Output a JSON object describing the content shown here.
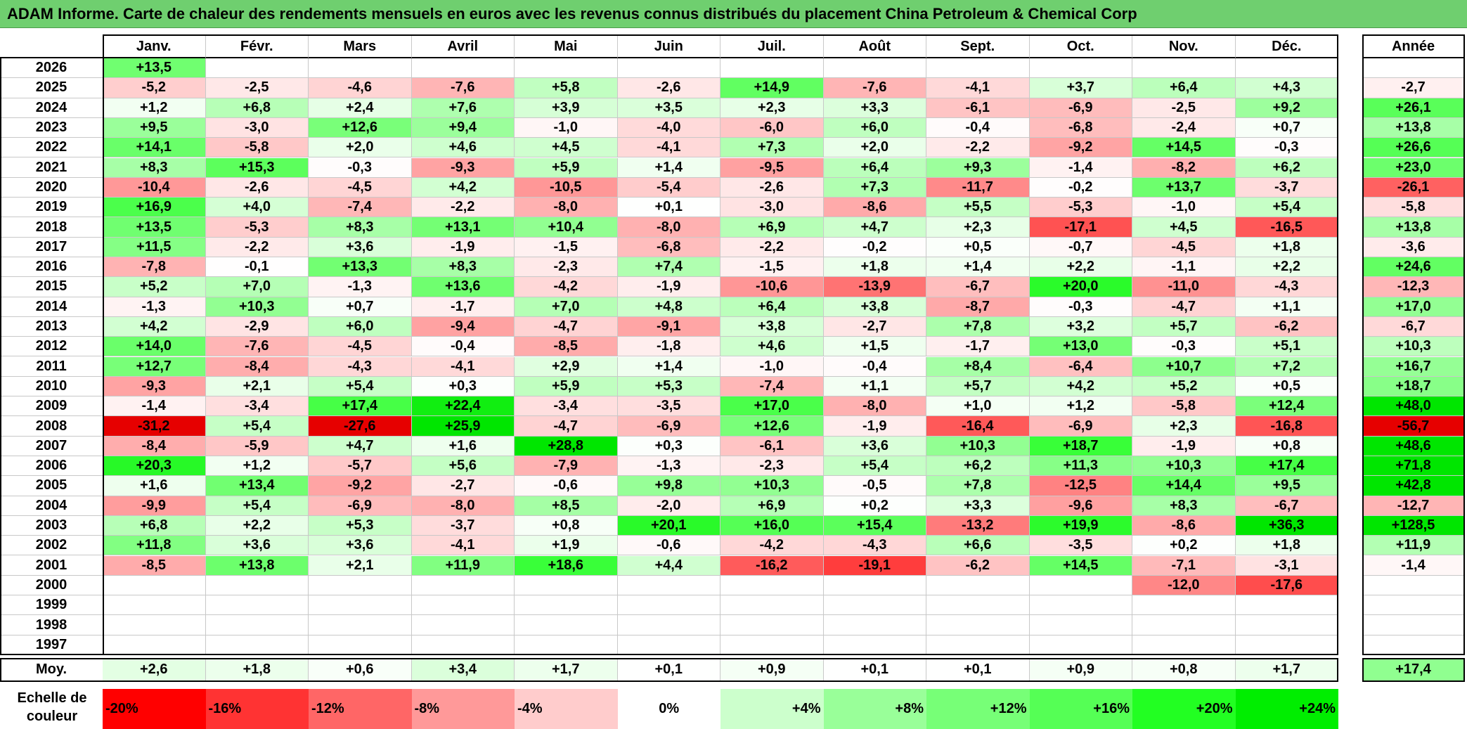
{
  "title": "ADAM Informe. Carte de chaleur des rendements mensuels en euros avec les revenus connus distribués du placement China Petroleum & Chemical Corp",
  "chart_data": {
    "type": "heatmap",
    "title": "ADAM Informe. Carte de chaleur des rendements mensuels en euros avec les revenus connus distribués du placement China Petroleum & Chemical Corp",
    "months": [
      "Janv.",
      "Févr.",
      "Mars",
      "Avril",
      "Mai",
      "Juin",
      "Juil.",
      "Août",
      "Sept.",
      "Oct.",
      "Nov.",
      "Déc."
    ],
    "year_header": "Année",
    "rows": [
      {
        "year": "2026",
        "values": [
          "+13,5",
          "",
          "",
          "",
          "",
          "",
          "",
          "",
          "",
          "",
          "",
          ""
        ],
        "annual": ""
      },
      {
        "year": "2025",
        "values": [
          "-5,2",
          "-2,5",
          "-4,6",
          "-7,6",
          "+5,8",
          "-2,6",
          "+14,9",
          "-7,6",
          "-4,1",
          "+3,7",
          "+6,4",
          "+4,3"
        ],
        "annual": "-2,7"
      },
      {
        "year": "2024",
        "values": [
          "+1,2",
          "+6,8",
          "+2,4",
          "+7,6",
          "+3,9",
          "+3,5",
          "+2,3",
          "+3,3",
          "-6,1",
          "-6,9",
          "-2,5",
          "+9,2"
        ],
        "annual": "+26,1"
      },
      {
        "year": "2023",
        "values": [
          "+9,5",
          "-3,0",
          "+12,6",
          "+9,4",
          "-1,0",
          "-4,0",
          "-6,0",
          "+6,0",
          "-0,4",
          "-6,8",
          "-2,4",
          "+0,7"
        ],
        "annual": "+13,8"
      },
      {
        "year": "2022",
        "values": [
          "+14,1",
          "-5,8",
          "+2,0",
          "+4,6",
          "+4,5",
          "-4,1",
          "+7,3",
          "+2,0",
          "-2,2",
          "-9,2",
          "+14,5",
          "-0,3"
        ],
        "annual": "+26,6"
      },
      {
        "year": "2021",
        "values": [
          "+8,3",
          "+15,3",
          "-0,3",
          "-9,3",
          "+5,9",
          "+1,4",
          "-9,5",
          "+6,4",
          "+9,3",
          "-1,4",
          "-8,2",
          "+6,2"
        ],
        "annual": "+23,0"
      },
      {
        "year": "2020",
        "values": [
          "-10,4",
          "-2,6",
          "-4,5",
          "+4,2",
          "-10,5",
          "-5,4",
          "-2,6",
          "+7,3",
          "-11,7",
          "-0,2",
          "+13,7",
          "-3,7"
        ],
        "annual": "-26,1"
      },
      {
        "year": "2019",
        "values": [
          "+16,9",
          "+4,0",
          "-7,4",
          "-2,2",
          "-8,0",
          "+0,1",
          "-3,0",
          "-8,6",
          "+5,5",
          "-5,3",
          "-1,0",
          "+5,4"
        ],
        "annual": "-5,8"
      },
      {
        "year": "2018",
        "values": [
          "+13,5",
          "-5,3",
          "+8,3",
          "+13,1",
          "+10,4",
          "-8,0",
          "+6,9",
          "+4,7",
          "+2,3",
          "-17,1",
          "+4,5",
          "-16,5"
        ],
        "annual": "+13,8"
      },
      {
        "year": "2017",
        "values": [
          "+11,5",
          "-2,2",
          "+3,6",
          "-1,9",
          "-1,5",
          "-6,8",
          "-2,2",
          "-0,2",
          "+0,5",
          "-0,7",
          "-4,5",
          "+1,8"
        ],
        "annual": "-3,6"
      },
      {
        "year": "2016",
        "values": [
          "-7,8",
          "-0,1",
          "+13,3",
          "+8,3",
          "-2,3",
          "+7,4",
          "-1,5",
          "+1,8",
          "+1,4",
          "+2,2",
          "-1,1",
          "+2,2"
        ],
        "annual": "+24,6"
      },
      {
        "year": "2015",
        "values": [
          "+5,2",
          "+7,0",
          "-1,3",
          "+13,6",
          "-4,2",
          "-1,9",
          "-10,6",
          "-13,9",
          "-6,7",
          "+20,0",
          "-11,0",
          "-4,3"
        ],
        "annual": "-12,3"
      },
      {
        "year": "2014",
        "values": [
          "-1,3",
          "+10,3",
          "+0,7",
          "-1,7",
          "+7,0",
          "+4,8",
          "+6,4",
          "+3,8",
          "-8,7",
          "-0,3",
          "-4,7",
          "+1,1"
        ],
        "annual": "+17,0"
      },
      {
        "year": "2013",
        "values": [
          "+4,2",
          "-2,9",
          "+6,0",
          "-9,4",
          "-4,7",
          "-9,1",
          "+3,8",
          "-2,7",
          "+7,8",
          "+3,2",
          "+5,7",
          "-6,2"
        ],
        "annual": "-6,7"
      },
      {
        "year": "2012",
        "values": [
          "+14,0",
          "-7,6",
          "-4,5",
          "-0,4",
          "-8,5",
          "-1,8",
          "+4,6",
          "+1,5",
          "-1,7",
          "+13,0",
          "-0,3",
          "+5,1"
        ],
        "annual": "+10,3"
      },
      {
        "year": "2011",
        "values": [
          "+12,7",
          "-8,4",
          "-4,3",
          "-4,1",
          "+2,9",
          "+1,4",
          "-1,0",
          "-0,4",
          "+8,4",
          "-6,4",
          "+10,7",
          "+7,2"
        ],
        "annual": "+16,7"
      },
      {
        "year": "2010",
        "values": [
          "-9,3",
          "+2,1",
          "+5,4",
          "+0,3",
          "+5,9",
          "+5,3",
          "-7,4",
          "+1,1",
          "+5,7",
          "+4,2",
          "+5,2",
          "+0,5"
        ],
        "annual": "+18,7"
      },
      {
        "year": "2009",
        "values": [
          "-1,4",
          "-3,4",
          "+17,4",
          "+22,4",
          "-3,4",
          "-3,5",
          "+17,0",
          "-8,0",
          "+1,0",
          "+1,2",
          "-5,8",
          "+12,4"
        ],
        "annual": "+48,0"
      },
      {
        "year": "2008",
        "values": [
          "-31,2",
          "+5,4",
          "-27,6",
          "+25,9",
          "-4,7",
          "-6,9",
          "+12,6",
          "-1,9",
          "-16,4",
          "-6,9",
          "+2,3",
          "-16,8"
        ],
        "annual": "-56,7"
      },
      {
        "year": "2007",
        "values": [
          "-8,4",
          "-5,9",
          "+4,7",
          "+1,6",
          "+28,8",
          "+0,3",
          "-6,1",
          "+3,6",
          "+10,3",
          "+18,7",
          "-1,9",
          "+0,8"
        ],
        "annual": "+48,6"
      },
      {
        "year": "2006",
        "values": [
          "+20,3",
          "+1,2",
          "-5,7",
          "+5,6",
          "-7,9",
          "-1,3",
          "-2,3",
          "+5,4",
          "+6,2",
          "+11,3",
          "+10,3",
          "+17,4"
        ],
        "annual": "+71,8"
      },
      {
        "year": "2005",
        "values": [
          "+1,6",
          "+13,4",
          "-9,2",
          "-2,7",
          "-0,6",
          "+9,8",
          "+10,3",
          "-0,5",
          "+7,8",
          "-12,5",
          "+14,4",
          "+9,5"
        ],
        "annual": "+42,8"
      },
      {
        "year": "2004",
        "values": [
          "-9,9",
          "+5,4",
          "-6,9",
          "-8,0",
          "+8,5",
          "-2,0",
          "+6,9",
          "+0,2",
          "+3,3",
          "-9,6",
          "+8,3",
          "-6,7"
        ],
        "annual": "-12,7"
      },
      {
        "year": "2003",
        "values": [
          "+6,8",
          "+2,2",
          "+5,3",
          "-3,7",
          "+0,8",
          "+20,1",
          "+16,0",
          "+15,4",
          "-13,2",
          "+19,9",
          "-8,6",
          "+36,3"
        ],
        "annual": "+128,5"
      },
      {
        "year": "2002",
        "values": [
          "+11,8",
          "+3,6",
          "+3,6",
          "-4,1",
          "+1,9",
          "-0,6",
          "-4,2",
          "-4,3",
          "+6,6",
          "-3,5",
          "+0,2",
          "+1,8"
        ],
        "annual": "+11,9"
      },
      {
        "year": "2001",
        "values": [
          "-8,5",
          "+13,8",
          "+2,1",
          "+11,9",
          "+18,6",
          "+4,4",
          "-16,2",
          "-19,1",
          "-6,2",
          "+14,5",
          "-7,1",
          "-3,1"
        ],
        "annual": "-1,4"
      },
      {
        "year": "2000",
        "values": [
          "",
          "",
          "",
          "",
          "",
          "",
          "",
          "",
          "",
          "",
          "-12,0",
          "-17,6"
        ],
        "annual": ""
      },
      {
        "year": "1999",
        "values": [
          "",
          "",
          "",
          "",
          "",
          "",
          "",
          "",
          "",
          "",
          "",
          ""
        ],
        "annual": ""
      },
      {
        "year": "1998",
        "values": [
          "",
          "",
          "",
          "",
          "",
          "",
          "",
          "",
          "",
          "",
          "",
          ""
        ],
        "annual": ""
      },
      {
        "year": "1997",
        "values": [
          "",
          "",
          "",
          "",
          "",
          "",
          "",
          "",
          "",
          "",
          "",
          ""
        ],
        "annual": ""
      }
    ],
    "average": {
      "label": "Moy.",
      "values": [
        "+2,6",
        "+1,8",
        "+0,6",
        "+3,4",
        "+1,7",
        "+0,1",
        "+0,9",
        "+0,1",
        "+0,1",
        "+0,9",
        "+0,8",
        "+1,7"
      ],
      "annual": "+17,4"
    },
    "scale": {
      "label": "Echelle de couleur",
      "stops": [
        "-20%",
        "-16%",
        "-12%",
        "-8%",
        "-4%",
        "0%",
        "+4%",
        "+8%",
        "+12%",
        "+16%",
        "+20%",
        "+24%"
      ],
      "colors": [
        "#ff0000",
        "#ff3333",
        "#ff6666",
        "#ff9999",
        "#ffcccc",
        "#ffffff",
        "#ccffcc",
        "#99ff99",
        "#77ff77",
        "#55ff55",
        "#22ff22",
        "#00ee00"
      ]
    }
  }
}
